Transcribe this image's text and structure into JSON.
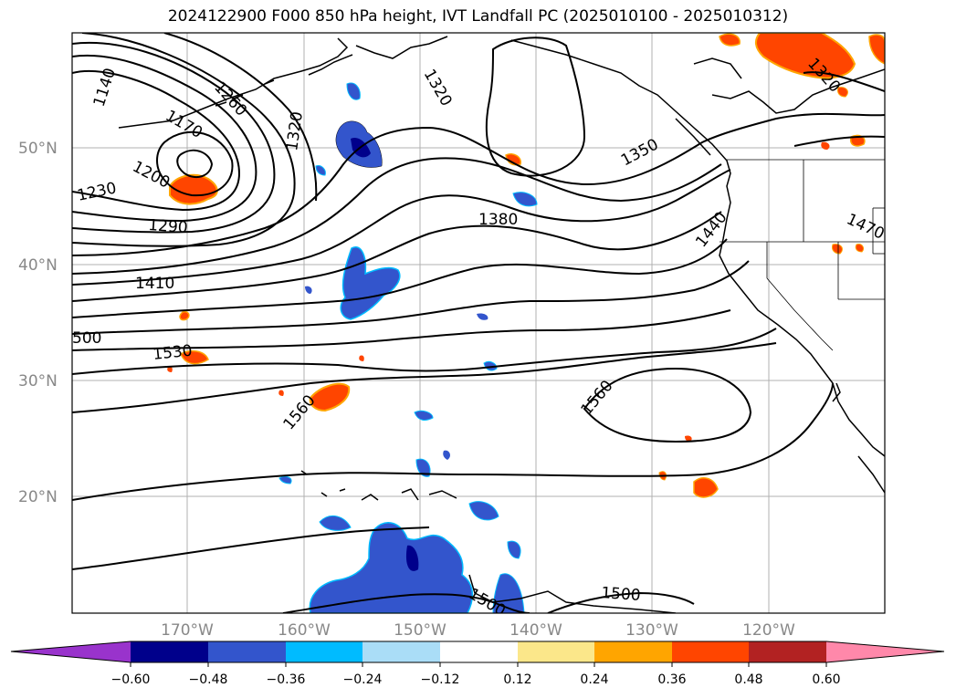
{
  "title": "2024122900 F000 850 hPa height, IVT Landfall PC (2025010100 - 2025010312)",
  "map": {
    "lon_range": [
      -180,
      -110
    ],
    "lat_range": [
      10,
      60
    ],
    "lat_ticks": [
      "20°N",
      "30°N",
      "40°N",
      "50°N"
    ],
    "lon_ticks": [
      "170°W",
      "160°W",
      "150°W",
      "140°W",
      "130°W",
      "120°W"
    ],
    "contour_labels": [
      "1140",
      "1170",
      "1200",
      "1230",
      "1260",
      "1290",
      "1320",
      "1320",
      "1320",
      "1350",
      "1380",
      "1410",
      "1440",
      "1470",
      "500",
      "1530",
      "1560",
      "1560",
      "1500",
      "1500"
    ]
  },
  "colorbar": {
    "colors": [
      "#9933cc",
      "#00008b",
      "#3355cc",
      "#00bbff",
      "#aaddf7",
      "#ffffff",
      "#fbe78a",
      "#ffa500",
      "#ff4500",
      "#b22222",
      "#ff88aa"
    ],
    "tick_labels": [
      "−0.60",
      "−0.48",
      "−0.36",
      "−0.24",
      "−0.12",
      "0.12",
      "0.24",
      "0.36",
      "0.48",
      "0.60"
    ]
  }
}
